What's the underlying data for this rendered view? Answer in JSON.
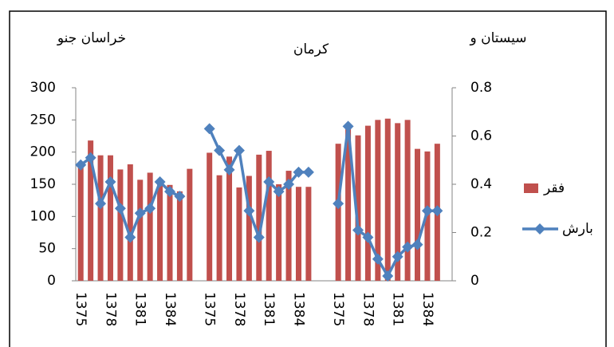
{
  "chart_data": {
    "type": "bar_line",
    "group_labels": [
      "خراسان جنو",
      "کرمان",
      "سیستان و"
    ],
    "categories": [
      "1375",
      null,
      null,
      "1378",
      null,
      null,
      "1381",
      null,
      null,
      "1384",
      null,
      null,
      null,
      "1375",
      null,
      null,
      "1378",
      null,
      null,
      "1381",
      null,
      null,
      "1384",
      null,
      null,
      null,
      "1375",
      null,
      null,
      "1378",
      null,
      null,
      "1381",
      null,
      null,
      "1384",
      null,
      null
    ],
    "series": [
      {
        "name": "فقر",
        "color": "#c0504d",
        "axis": "y",
        "values": [
          182,
          218,
          195,
          195,
          173,
          181,
          157,
          168,
          152,
          149,
          139,
          174,
          null,
          199,
          164,
          193,
          145,
          163,
          196,
          202,
          150,
          171,
          146,
          146,
          null,
          null,
          213,
          242,
          226,
          241,
          250,
          252,
          245,
          250,
          205,
          201,
          213,
          null
        ]
      },
      {
        "name": "بارش",
        "color": "#4f81bd",
        "axis": "y2",
        "values": [
          0.48,
          0.51,
          0.32,
          0.41,
          0.3,
          0.18,
          0.28,
          0.3,
          0.41,
          0.37,
          0.35,
          null,
          null,
          0.63,
          0.54,
          0.46,
          0.54,
          0.29,
          0.18,
          0.41,
          0.37,
          0.4,
          0.45,
          0.45,
          null,
          null,
          0.32,
          0.64,
          0.21,
          0.18,
          0.09,
          0.02,
          0.1,
          0.14,
          0.15,
          0.29,
          0.29,
          null
        ]
      }
    ],
    "ylim": [
      0,
      300
    ],
    "yticks": [
      0,
      50,
      100,
      150,
      200,
      250,
      300
    ],
    "y2lim": [
      0,
      0.8
    ],
    "y2ticks": [
      0,
      0.2,
      0.4,
      0.6,
      0.8
    ],
    "grid": false
  }
}
